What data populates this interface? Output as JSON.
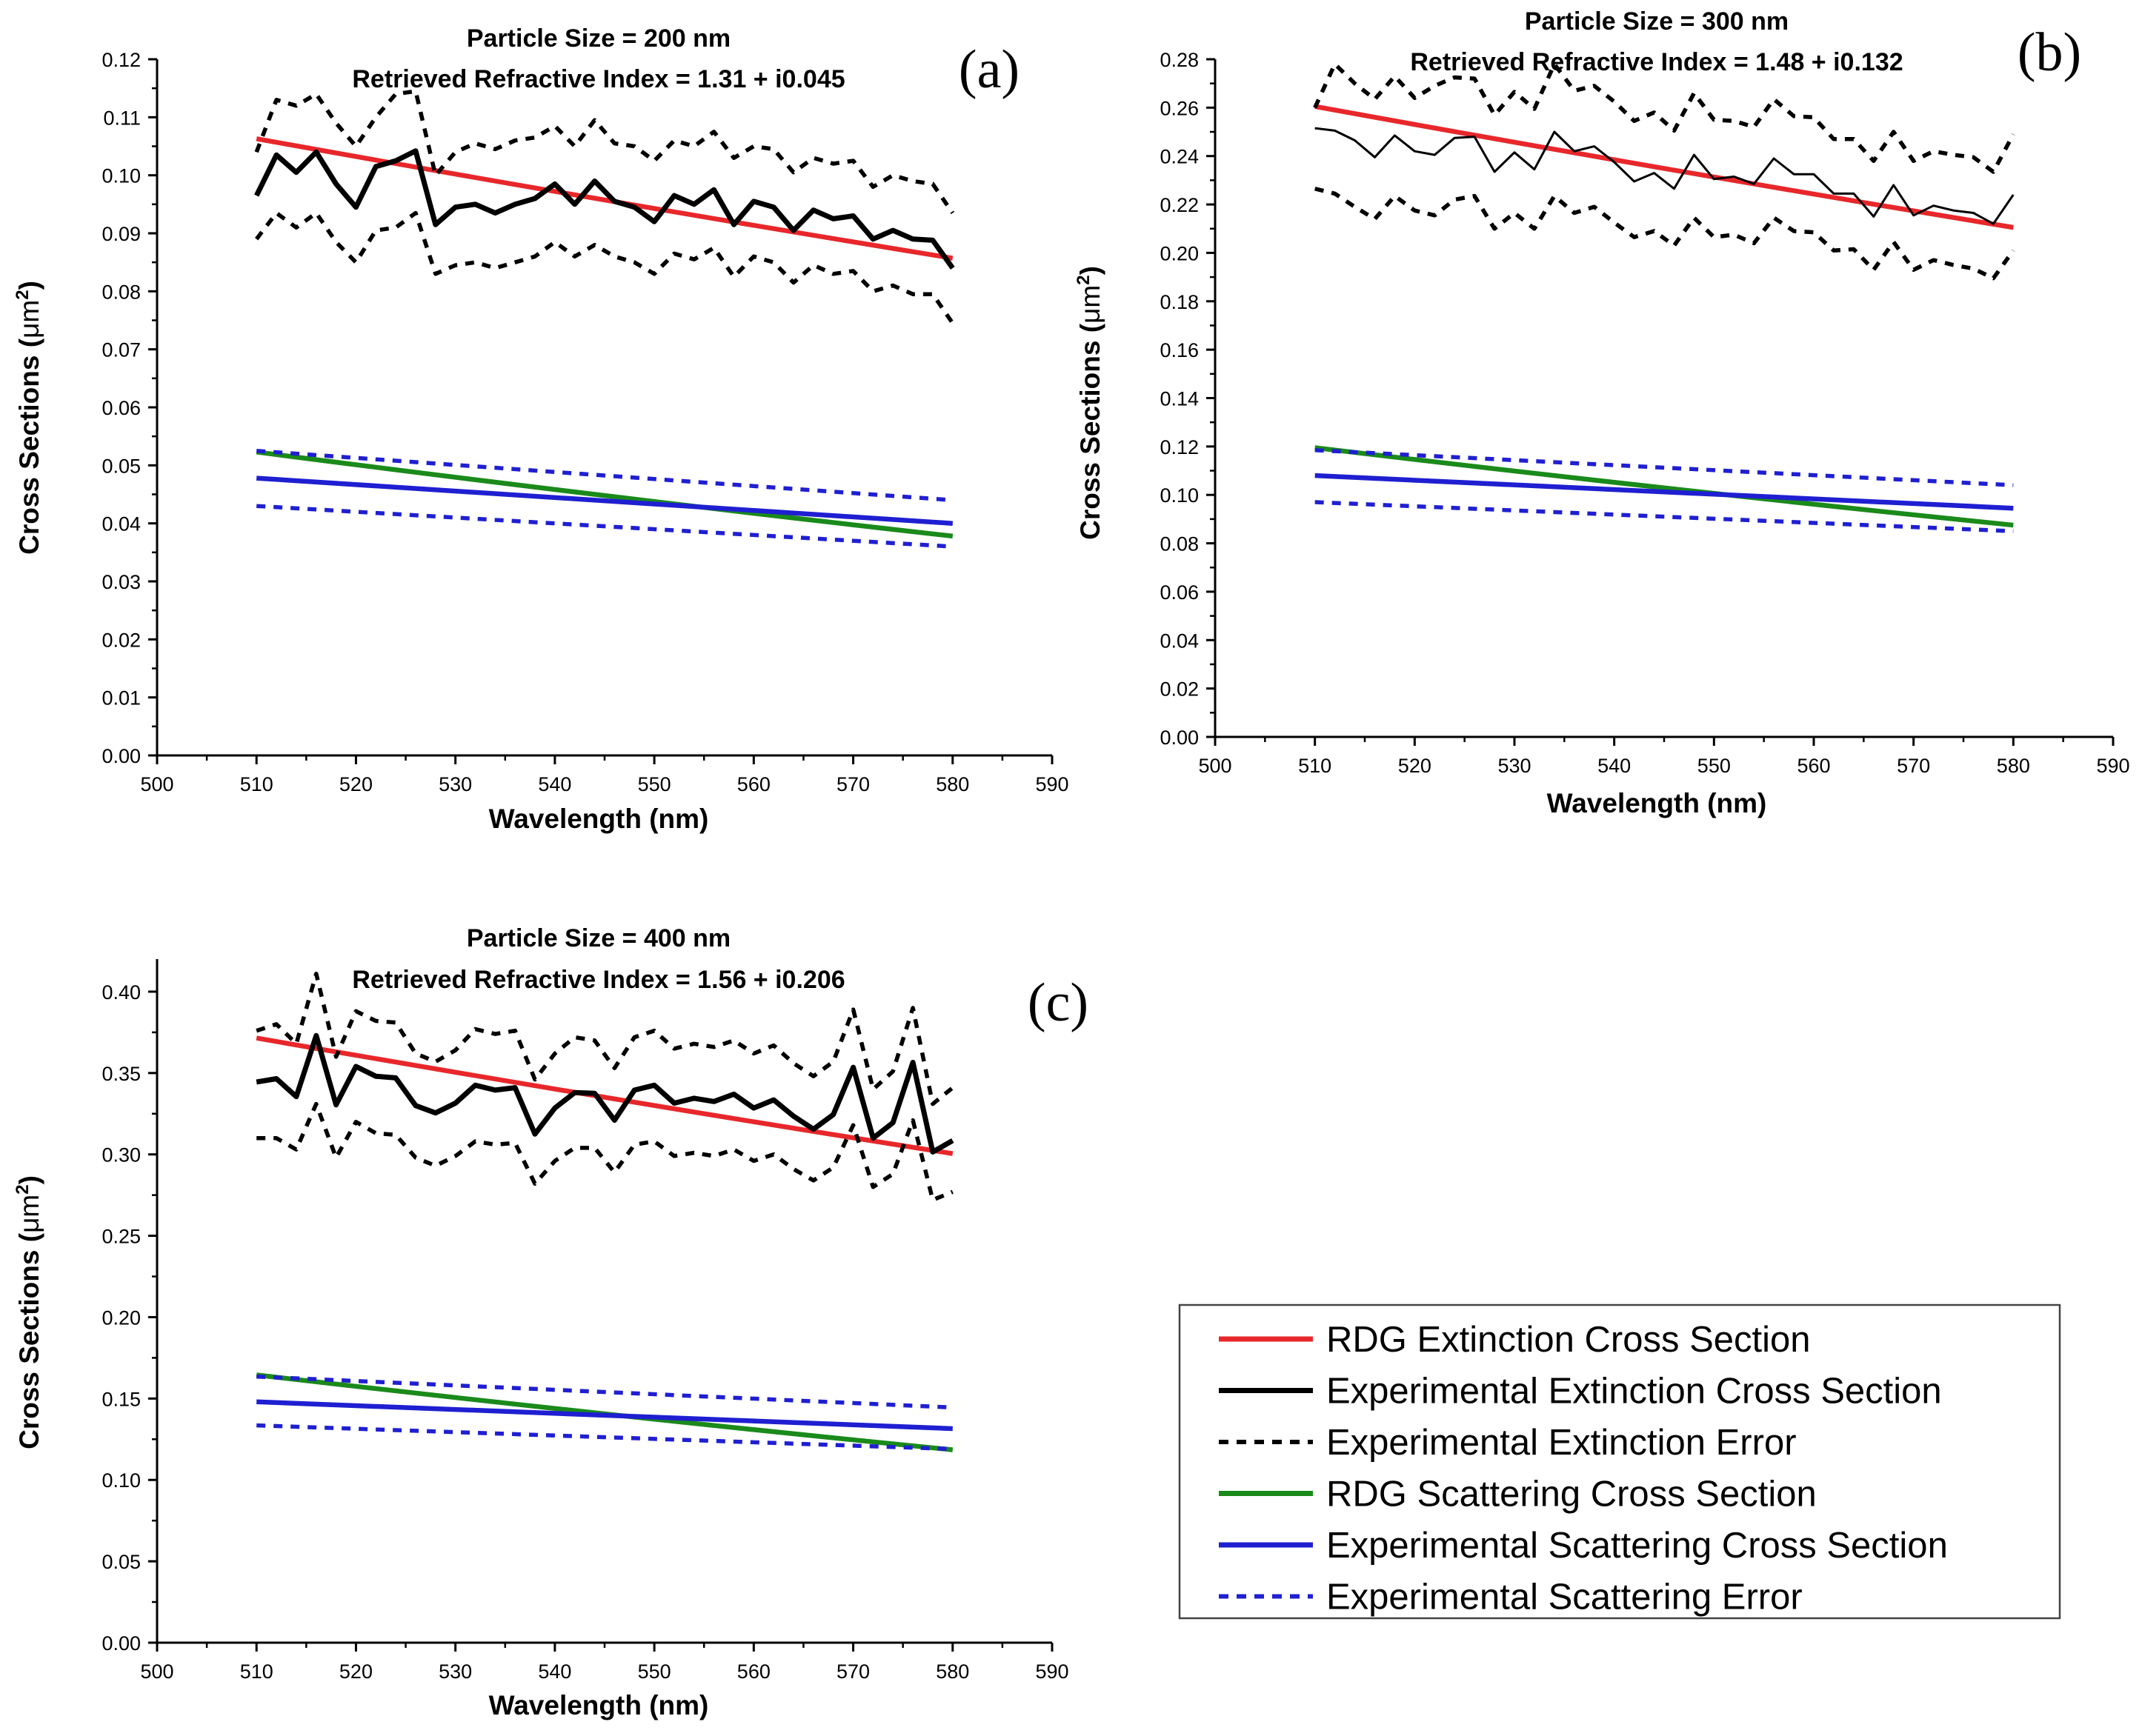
{
  "legend": {
    "items": [
      {
        "key": "rdg_ext",
        "label": "RDG Extinction Cross Section",
        "color": "#e8272b",
        "dash": "none"
      },
      {
        "key": "exp_ext",
        "label": "Experimental Extinction Cross Section",
        "color": "#000000",
        "dash": "none"
      },
      {
        "key": "exp_ext_err",
        "label": "Experimental Extinction Error",
        "color": "#000000",
        "dash": "dot"
      },
      {
        "key": "rdg_sca",
        "label": "RDG Scattering Cross Section",
        "color": "#1a8a1a",
        "dash": "none"
      },
      {
        "key": "exp_sca",
        "label": "Experimental Scattering Cross Section",
        "color": "#1f1fd1",
        "dash": "none"
      },
      {
        "key": "exp_sca_err",
        "label": "Experimental Scattering Error",
        "color": "#1f1fd1",
        "dash": "dot"
      }
    ]
  },
  "chart_data": [
    {
      "panel": "(a)",
      "type": "line",
      "title_line1": "Particle Size = 200 nm",
      "title_line2": "Retrieved Refractive Index = 1.31 + i0.045",
      "xlabel": "Wavelength (nm)",
      "ylabel_main": "Cross Sections (",
      "ylabel_unit": "μm",
      "ylabel_sup": "2",
      "ylabel_end": ")",
      "xlim": [
        500,
        590
      ],
      "ylim": [
        0,
        0.12
      ],
      "xticks": [
        500,
        510,
        520,
        530,
        540,
        550,
        560,
        570,
        580,
        590
      ],
      "xtick_labels": [
        "500",
        "510",
        "520",
        "530",
        "540",
        "550",
        "560",
        "570",
        "580",
        "590"
      ],
      "yticks": [
        0,
        0.01,
        0.02,
        0.03,
        0.04,
        0.05,
        0.06,
        0.07,
        0.08,
        0.09,
        0.1,
        0.11,
        0.12
      ],
      "ytick_labels": [
        "0.00",
        "0.01",
        "0.02",
        "0.03",
        "0.04",
        "0.05",
        "0.06",
        "0.07",
        "0.08",
        "0.09",
        "0.10",
        "0.11",
        "0.12"
      ],
      "x": [
        510,
        512,
        514,
        516,
        518,
        520,
        522,
        524,
        526,
        528,
        530,
        532,
        534,
        536,
        538,
        540,
        542,
        544,
        546,
        548,
        550,
        552,
        554,
        556,
        558,
        560,
        562,
        564,
        566,
        568,
        570,
        572,
        574,
        576,
        578,
        580
      ],
      "series": [
        {
          "key": "rdg_ext",
          "name": "RDG Extinction Cross Section",
          "x": [
            510,
            580
          ],
          "values": [
            0.1063,
            0.0857
          ],
          "curve": true
        },
        {
          "key": "exp_ext",
          "name": "Experimental Extinction Cross Section",
          "values": [
            0.0965,
            0.1035,
            0.1005,
            0.104,
            0.0985,
            0.0945,
            0.1015,
            0.1025,
            0.1042,
            0.0915,
            0.0945,
            0.095,
            0.0935,
            0.095,
            0.096,
            0.0985,
            0.095,
            0.099,
            0.0955,
            0.0945,
            0.092,
            0.0965,
            0.095,
            0.0975,
            0.0915,
            0.0955,
            0.0945,
            0.0905,
            0.094,
            0.0925,
            0.093,
            0.089,
            0.0905,
            0.089,
            0.0888,
            0.084
          ]
        },
        {
          "key": "exp_ext_err_upper",
          "name": "Experimental Extinction Error",
          "values": [
            0.104,
            0.113,
            0.112,
            0.114,
            0.109,
            0.105,
            0.11,
            0.114,
            0.1145,
            0.1,
            0.104,
            0.1055,
            0.1045,
            0.106,
            0.1065,
            0.1085,
            0.105,
            0.1095,
            0.1055,
            0.105,
            0.1025,
            0.106,
            0.105,
            0.1075,
            0.103,
            0.105,
            0.1045,
            0.1005,
            0.103,
            0.102,
            0.1025,
            0.098,
            0.1,
            0.099,
            0.0985,
            0.0935
          ]
        },
        {
          "key": "exp_ext_err_lower",
          "name": "Experimental Extinction Error",
          "values": [
            0.089,
            0.0935,
            0.091,
            0.0935,
            0.0885,
            0.085,
            0.0905,
            0.091,
            0.0935,
            0.083,
            0.0845,
            0.085,
            0.084,
            0.085,
            0.086,
            0.0885,
            0.086,
            0.088,
            0.086,
            0.085,
            0.083,
            0.0865,
            0.0855,
            0.0875,
            0.0825,
            0.086,
            0.085,
            0.0815,
            0.0845,
            0.083,
            0.0835,
            0.08,
            0.081,
            0.0795,
            0.0795,
            0.0745
          ]
        },
        {
          "key": "rdg_sca",
          "name": "RDG Scattering Cross Section",
          "x": [
            510,
            580
          ],
          "values": [
            0.0523,
            0.0378
          ],
          "curve": true
        },
        {
          "key": "exp_sca",
          "name": "Experimental Scattering Cross Section",
          "x": [
            510,
            580
          ],
          "values": [
            0.0478,
            0.04
          ]
        },
        {
          "key": "exp_sca_err_upper",
          "name": "Experimental Scattering Error",
          "x": [
            510,
            580
          ],
          "values": [
            0.0525,
            0.044
          ]
        },
        {
          "key": "exp_sca_err_lower",
          "name": "Experimental Scattering Error",
          "x": [
            510,
            580
          ],
          "values": [
            0.043,
            0.036
          ]
        }
      ]
    },
    {
      "panel": "(b)",
      "type": "line",
      "title_line1": "Particle Size = 300 nm",
      "title_line2": "Retrieved Refractive Index = 1.48 + i0.132",
      "xlabel": "Wavelength (nm)",
      "ylabel_main": "Cross Sections (",
      "ylabel_unit": "μm",
      "ylabel_sup": "2",
      "ylabel_end": ")",
      "xlim": [
        500,
        590
      ],
      "ylim": [
        0,
        0.28
      ],
      "xticks": [
        500,
        510,
        520,
        530,
        540,
        550,
        560,
        570,
        580,
        590
      ],
      "xtick_labels": [
        "500",
        "510",
        "520",
        "530",
        "540",
        "550",
        "560",
        "570",
        "580",
        "590"
      ],
      "yticks": [
        0,
        0.02,
        0.04,
        0.06,
        0.08,
        0.1,
        0.12,
        0.14,
        0.16,
        0.18,
        0.2,
        0.22,
        0.24,
        0.26,
        0.28
      ],
      "ytick_labels": [
        "0.00",
        "0.02",
        "0.04",
        "0.06",
        "0.08",
        "0.10",
        "0.12",
        "0.14",
        "0.16",
        "0.18",
        "0.20",
        "0.22",
        "0.24",
        "0.26",
        "0.28"
      ],
      "x": [
        510,
        512,
        514,
        516,
        518,
        520,
        522,
        524,
        526,
        528,
        530,
        532,
        534,
        536,
        538,
        540,
        542,
        544,
        546,
        548,
        550,
        552,
        554,
        556,
        558,
        560,
        562,
        564,
        566,
        568,
        570,
        572,
        574,
        576,
        578,
        580
      ],
      "series": [
        {
          "key": "rdg_ext",
          "name": "RDG Extinction Cross Section",
          "x": [
            510,
            580
          ],
          "values": [
            0.2605,
            0.2105
          ],
          "curve": true
        },
        {
          "key": "exp_ext",
          "name": "Experimental Extinction Cross Section",
          "thin": true,
          "values": [
            0.2515,
            0.2505,
            0.2465,
            0.2395,
            0.2485,
            0.242,
            0.2405,
            0.2475,
            0.248,
            0.2335,
            0.2415,
            0.2345,
            0.25,
            0.242,
            0.244,
            0.2375,
            0.2295,
            0.233,
            0.2265,
            0.2405,
            0.2305,
            0.2315,
            0.2285,
            0.239,
            0.2325,
            0.2325,
            0.2245,
            0.2245,
            0.215,
            0.228,
            0.2155,
            0.2195,
            0.2175,
            0.2165,
            0.212,
            0.224
          ]
        },
        {
          "key": "exp_ext_err_upper",
          "name": "Experimental Extinction Error",
          "values": [
            0.26,
            0.278,
            0.27,
            0.2635,
            0.273,
            0.264,
            0.269,
            0.2725,
            0.272,
            0.257,
            0.2665,
            0.2595,
            0.278,
            0.267,
            0.269,
            0.2625,
            0.2545,
            0.258,
            0.2505,
            0.266,
            0.255,
            0.2545,
            0.252,
            0.2635,
            0.2565,
            0.256,
            0.247,
            0.247,
            0.238,
            0.25,
            0.238,
            0.242,
            0.2405,
            0.2395,
            0.2335,
            0.249
          ]
        },
        {
          "key": "exp_ext_err_lower",
          "name": "Experimental Extinction Error",
          "values": [
            0.2265,
            0.2245,
            0.219,
            0.214,
            0.2235,
            0.2175,
            0.2155,
            0.222,
            0.2235,
            0.21,
            0.2165,
            0.21,
            0.2235,
            0.2165,
            0.219,
            0.2125,
            0.2065,
            0.209,
            0.203,
            0.2145,
            0.2065,
            0.2075,
            0.204,
            0.2145,
            0.209,
            0.2085,
            0.201,
            0.2015,
            0.193,
            0.2045,
            0.193,
            0.197,
            0.195,
            0.1935,
            0.1895,
            0.201
          ]
        },
        {
          "key": "rdg_sca",
          "name": "RDG Scattering Cross Section",
          "x": [
            510,
            580
          ],
          "values": [
            0.1195,
            0.0875
          ],
          "curve": true
        },
        {
          "key": "exp_sca",
          "name": "Experimental Scattering Cross Section",
          "x": [
            510,
            580
          ],
          "values": [
            0.108,
            0.0945
          ]
        },
        {
          "key": "exp_sca_err_upper",
          "name": "Experimental Scattering Error",
          "x": [
            510,
            580
          ],
          "values": [
            0.1185,
            0.104
          ]
        },
        {
          "key": "exp_sca_err_lower",
          "name": "Experimental Scattering Error",
          "x": [
            510,
            580
          ],
          "values": [
            0.097,
            0.085
          ]
        }
      ]
    },
    {
      "panel": "(c)",
      "type": "line",
      "title_line1": "Particle Size = 400 nm",
      "title_line2": "Retrieved Refractive Index = 1.56 + i0.206",
      "xlabel": "Wavelength (nm)",
      "ylabel_main": "Cross Sections (",
      "ylabel_unit": "μm",
      "ylabel_sup": "2",
      "ylabel_end": ")",
      "xlim": [
        500,
        590
      ],
      "ylim": [
        0,
        0.42
      ],
      "xticks": [
        500,
        510,
        520,
        530,
        540,
        550,
        560,
        570,
        580,
        590
      ],
      "xtick_labels": [
        "500",
        "510",
        "520",
        "530",
        "540",
        "550",
        "560",
        "570",
        "580",
        "590"
      ],
      "yticks": [
        0,
        0.05,
        0.1,
        0.15,
        0.2,
        0.25,
        0.3,
        0.35,
        0.4
      ],
      "ytick_labels": [
        "0.00",
        "0.05",
        "0.10",
        "0.15",
        "0.20",
        "0.25",
        "0.30",
        "0.35",
        "0.40"
      ],
      "x": [
        510,
        512,
        514,
        516,
        518,
        520,
        522,
        524,
        526,
        528,
        530,
        532,
        534,
        536,
        538,
        540,
        542,
        544,
        546,
        548,
        550,
        552,
        554,
        556,
        558,
        560,
        562,
        564,
        566,
        568,
        570,
        572,
        574,
        576,
        578,
        580
      ],
      "series": [
        {
          "key": "rdg_ext",
          "name": "RDG Extinction Cross Section",
          "x": [
            510,
            580
          ],
          "values": [
            0.3715,
            0.3005
          ],
          "curve": true
        },
        {
          "key": "exp_ext",
          "name": "Experimental Extinction Cross Section",
          "values": [
            0.3445,
            0.3465,
            0.3355,
            0.373,
            0.3305,
            0.354,
            0.348,
            0.347,
            0.33,
            0.3255,
            0.3315,
            0.3425,
            0.3395,
            0.341,
            0.3125,
            0.3285,
            0.338,
            0.3375,
            0.321,
            0.3395,
            0.3425,
            0.3315,
            0.3345,
            0.3325,
            0.337,
            0.3285,
            0.3335,
            0.3235,
            0.3155,
            0.3245,
            0.3535,
            0.31,
            0.3195,
            0.3565,
            0.3015,
            0.3085
          ]
        },
        {
          "key": "exp_ext_err_upper",
          "name": "Experimental Extinction Error",
          "values": [
            0.376,
            0.38,
            0.368,
            0.411,
            0.36,
            0.388,
            0.382,
            0.381,
            0.362,
            0.357,
            0.364,
            0.377,
            0.374,
            0.376,
            0.346,
            0.362,
            0.372,
            0.37,
            0.353,
            0.372,
            0.376,
            0.365,
            0.368,
            0.366,
            0.37,
            0.362,
            0.367,
            0.356,
            0.348,
            0.357,
            0.389,
            0.34,
            0.351,
            0.39,
            0.331,
            0.341
          ]
        },
        {
          "key": "exp_ext_err_lower",
          "name": "Experimental Extinction Error",
          "values": [
            0.31,
            0.31,
            0.303,
            0.331,
            0.298,
            0.32,
            0.313,
            0.312,
            0.298,
            0.293,
            0.299,
            0.308,
            0.306,
            0.307,
            0.282,
            0.296,
            0.304,
            0.304,
            0.289,
            0.306,
            0.308,
            0.299,
            0.301,
            0.299,
            0.303,
            0.296,
            0.3,
            0.291,
            0.284,
            0.292,
            0.318,
            0.28,
            0.288,
            0.321,
            0.272,
            0.277
          ]
        },
        {
          "key": "rdg_sca",
          "name": "RDG Scattering Cross Section",
          "x": [
            510,
            580
          ],
          "values": [
            0.1645,
            0.1185
          ],
          "curve": true
        },
        {
          "key": "exp_sca",
          "name": "Experimental Scattering Cross Section",
          "x": [
            510,
            580
          ],
          "values": [
            0.148,
            0.1315
          ]
        },
        {
          "key": "exp_sca_err_upper",
          "name": "Experimental Scattering Error",
          "x": [
            510,
            580
          ],
          "values": [
            0.1635,
            0.1445
          ]
        },
        {
          "key": "exp_sca_err_lower",
          "name": "Experimental Scattering Error",
          "x": [
            510,
            580
          ],
          "values": [
            0.1335,
            0.119
          ]
        }
      ]
    }
  ]
}
